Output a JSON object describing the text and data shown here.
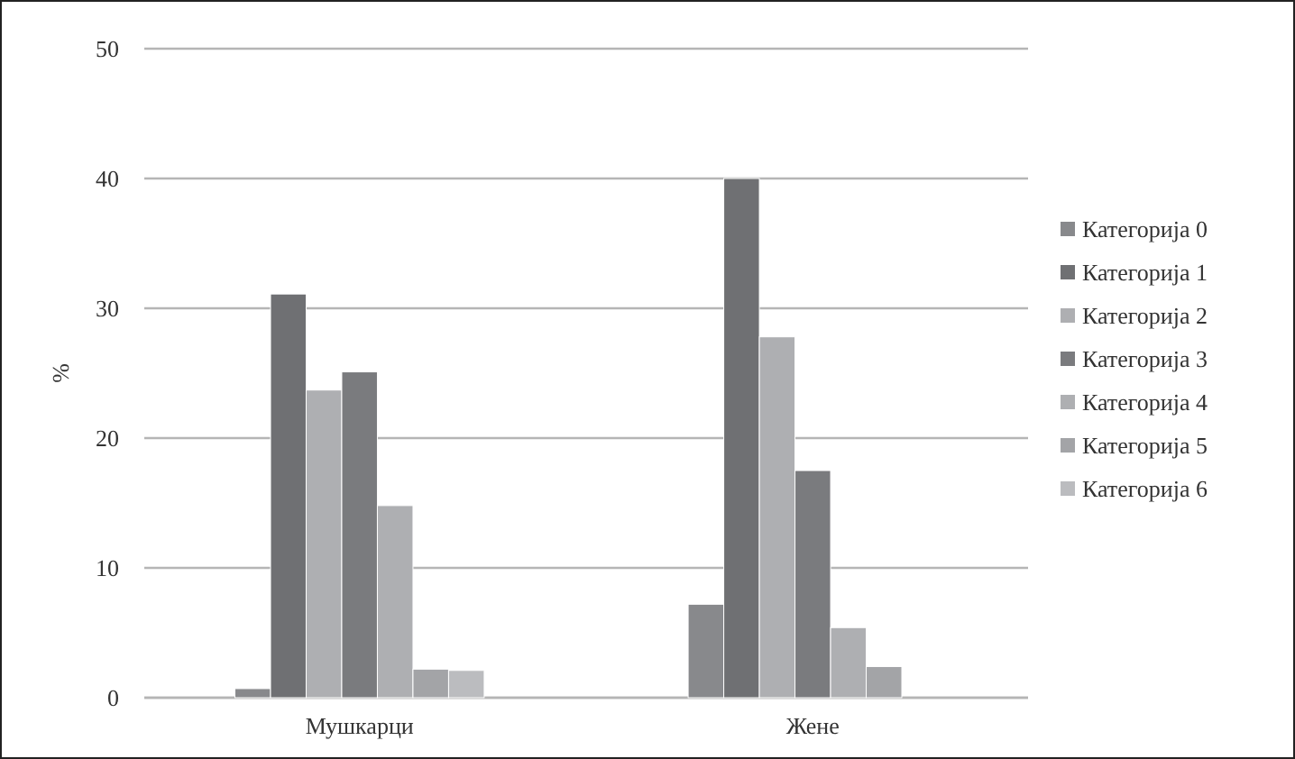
{
  "chart_data": {
    "type": "bar",
    "ylabel": "%",
    "categories": [
      "Мушкарци",
      "Жене"
    ],
    "series": [
      {
        "name": "Категорија 0",
        "color": "#88898c",
        "values": [
          0.7,
          7.2
        ]
      },
      {
        "name": "Категорија 1",
        "color": "#6f7073",
        "values": [
          31.1,
          40
        ]
      },
      {
        "name": "Категорија 2",
        "color": "#aeafb2",
        "values": [
          23.7,
          27.8
        ]
      },
      {
        "name": "Категорија 3",
        "color": "#7a7b7e",
        "values": [
          25.1,
          17.5
        ]
      },
      {
        "name": "Категорија 4",
        "color": "#aeafb2",
        "values": [
          14.8,
          5.4
        ]
      },
      {
        "name": "Категорија 5",
        "color": "#a3a4a7",
        "values": [
          2.2,
          2.4
        ]
      },
      {
        "name": "Категорија 6",
        "color": "#bbbcbf",
        "values": [
          2.1,
          0
        ]
      }
    ],
    "ylim": [
      0,
      50
    ],
    "yticks": [
      0,
      10,
      20,
      30,
      40,
      50
    ],
    "grid": "y",
    "legend": "right"
  }
}
